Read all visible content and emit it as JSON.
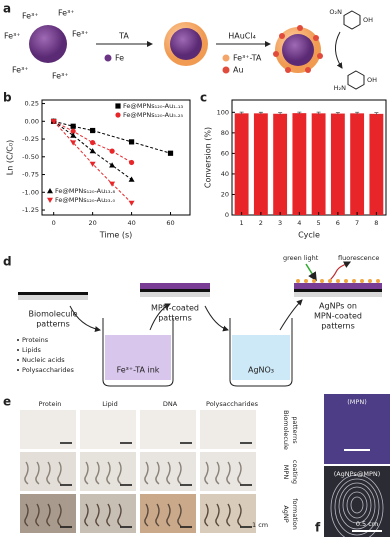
{
  "panel_labels": [
    "a",
    "b",
    "c",
    "d",
    "e",
    "f"
  ],
  "panel_a": {
    "fe_ions": [
      "Fe³⁺",
      "Fe³⁺",
      "Fe³⁺",
      "Fe³⁺",
      "Fe³⁺",
      "Fe³⁺"
    ],
    "step1": "TA",
    "fe_legend": "Fe",
    "step2": "HAuCl₄",
    "mpn_legend": "Fe³⁺-TA",
    "au_legend": "Au",
    "nitro_left": "O₂N",
    "nitro_right": "OH",
    "amino_left": "H₂N",
    "amino_right": "OH"
  },
  "chart_data": [
    {
      "type": "line",
      "xlabel": "Time (s)",
      "ylabel": "Ln (C/C₀)",
      "xlim": [
        -6,
        70
      ],
      "ylim": [
        -1.32,
        0.3
      ],
      "xticks": [
        0,
        20,
        40,
        60
      ],
      "yticks": [
        0.25,
        {
          "value": 0,
          "label": "0.00"
        },
        -0.25,
        {
          "value": -0.5,
          "label": "-0.50"
        },
        -0.75,
        {
          "value": -1,
          "label": "-1.00"
        },
        -1.25
      ],
      "series": [
        {
          "name": "Fe@MPNs₁₂₀-Au₁.₁₃",
          "color": "#000000",
          "marker": "square",
          "legend": "upper right",
          "x": [
            0,
            10,
            20,
            40,
            60
          ],
          "values": [
            0,
            -0.07,
            -0.13,
            -0.29,
            -0.45
          ]
        },
        {
          "name": "Fe@MPNs₁₂₀-Au₅.₂₅",
          "color": "#e8262a",
          "marker": "circle",
          "legend": "upper right",
          "x": [
            0,
            10,
            20,
            30,
            40
          ],
          "values": [
            0,
            -0.14,
            -0.3,
            -0.42,
            -0.58
          ]
        },
        {
          "name": "Fe@MPNs₁₂₀-Au₁₃.₈",
          "color": "#000000",
          "marker": "triangle-up",
          "legend": "lower left",
          "x": [
            0,
            10,
            20,
            30,
            40
          ],
          "values": [
            0,
            -0.2,
            -0.42,
            -0.62,
            -0.82
          ]
        },
        {
          "name": "Fe@MPNs₁₂₀-Au₂₃.₀",
          "color": "#e8262a",
          "marker": "triangle-down",
          "legend": "lower left",
          "x": [
            0,
            10,
            20,
            30,
            40
          ],
          "values": [
            0,
            -0.3,
            -0.6,
            -0.88,
            -1.15
          ]
        }
      ]
    },
    {
      "type": "bar",
      "xlabel": "Cycle",
      "ylabel": "Conversion (%)",
      "categories": [
        "1",
        "2",
        "3",
        "4",
        "5",
        "6",
        "7",
        "8"
      ],
      "values": [
        99,
        99,
        98.6,
        99.2,
        99,
        98.8,
        99,
        98.5
      ],
      "errors": [
        1.2,
        1,
        1.1,
        1,
        1.2,
        1,
        1.1,
        1.2
      ],
      "color": "#e8262a",
      "ylim": [
        0,
        112
      ],
      "yticks": [
        0,
        20,
        40,
        60,
        80,
        100
      ]
    }
  ],
  "panel_d": {
    "source_title": [
      "Biomolecule",
      "patterns"
    ],
    "bullets": [
      "Proteins",
      "Lipids",
      "Nucleic acids",
      "Polysaccharides"
    ],
    "ink": "Fe³⁺-TA ink",
    "mpn_title": [
      "MPN-coated",
      "patterns"
    ],
    "silver": "AgNO₃",
    "green_light": "green light",
    "fluorescence": "fluorescence",
    "product_title": [
      "AgNPs on",
      "MPN-coated",
      "patterns"
    ]
  },
  "panel_e": {
    "columns": [
      "Protein",
      "Lipid",
      "DNA",
      "Polysaccharides"
    ],
    "rows": [
      [
        "Biomolecule",
        "patterns"
      ],
      [
        "MPN",
        "coating"
      ],
      [
        "AgNP",
        "formation"
      ]
    ],
    "scale": "1 cm"
  },
  "panel_f": {
    "top": "(MPN)",
    "bottom": "(AgNPs@MPN)",
    "scale": "0.5 cm"
  }
}
